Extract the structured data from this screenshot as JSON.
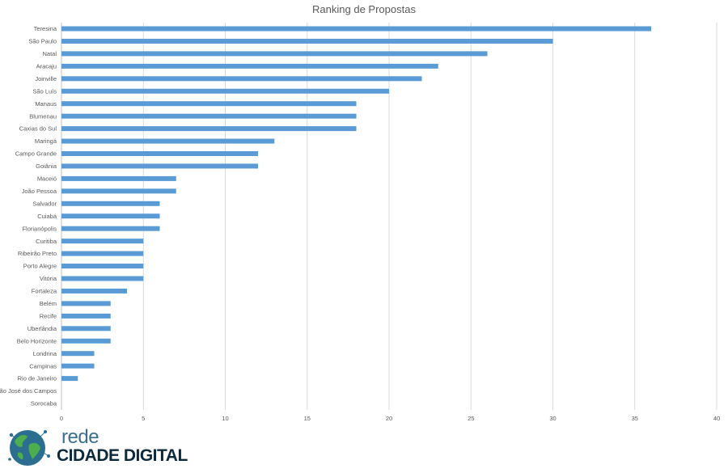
{
  "chart_data": {
    "type": "bar",
    "orientation": "horizontal",
    "title": "Ranking de Propostas",
    "xlabel": "",
    "ylabel": "",
    "xlim": [
      0,
      40
    ],
    "xticks": [
      "0",
      "5",
      "10",
      "15",
      "20",
      "25",
      "30",
      "35",
      "40"
    ],
    "grid": true,
    "bar_color": "#5b9bd5",
    "categories": [
      "Teresina",
      "São Paulo",
      "Natal",
      "Aracaju",
      "Joinville",
      "São Luís",
      "Manaus",
      "Blumenau",
      "Caxias do Sul",
      "Maringá",
      "Campo Grande",
      "Goiânia",
      "Maceió",
      "João Pessoa",
      "Salvador",
      "Cuiabá",
      "Florianópolis",
      "Curitiba",
      "Ribeirão Preto",
      "Porto Alegre",
      "Vitória",
      "Fortaleza",
      "Belém",
      "Recife",
      "Uberlândia",
      "Belo Horizonte",
      "Londrina",
      "Campinas",
      "Rio de Janeiro",
      "São José dos Campos",
      "Sorocaba"
    ],
    "values": [
      36,
      30,
      26,
      23,
      22,
      20,
      18,
      18,
      18,
      13,
      12,
      12,
      7,
      7,
      6,
      6,
      6,
      5,
      5,
      5,
      5,
      4,
      3,
      3,
      3,
      3,
      2,
      2,
      1,
      0,
      0
    ]
  },
  "logo": {
    "line1": "rede",
    "line2": "CIDADE DIGITAL",
    "colors": {
      "globe": "#2b6e8f",
      "land": "#4cae4f",
      "text_top": "#3a6f8f",
      "text_bottom": "#0d2a3d"
    }
  }
}
